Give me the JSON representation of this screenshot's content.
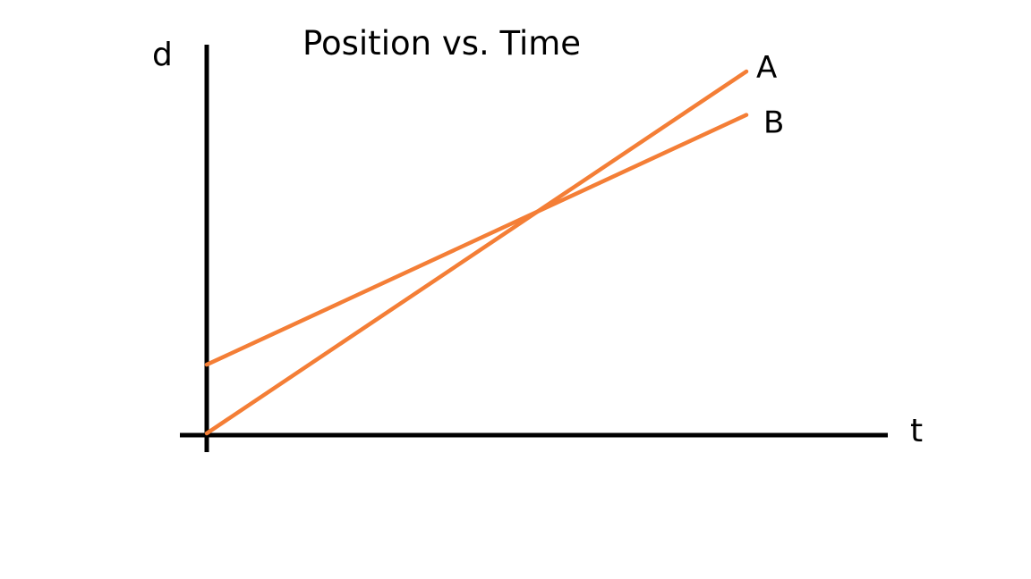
{
  "chart_data": {
    "type": "line",
    "title": "Position vs. Time",
    "xlabel": "t",
    "ylabel": "d",
    "grid": false,
    "legend": "none",
    "series_color": "#F47E36",
    "axis_color": "#000000",
    "xlim": [
      0,
      1
    ],
    "ylim": [
      0,
      1
    ],
    "series": [
      {
        "name": "A",
        "points": [
          {
            "x": 0,
            "y": 0
          },
          {
            "x": 1,
            "y": 1
          }
        ]
      },
      {
        "name": "B",
        "points": [
          {
            "x": 0,
            "y": 0.19
          },
          {
            "x": 1,
            "y": 0.88
          }
        ]
      }
    ]
  }
}
